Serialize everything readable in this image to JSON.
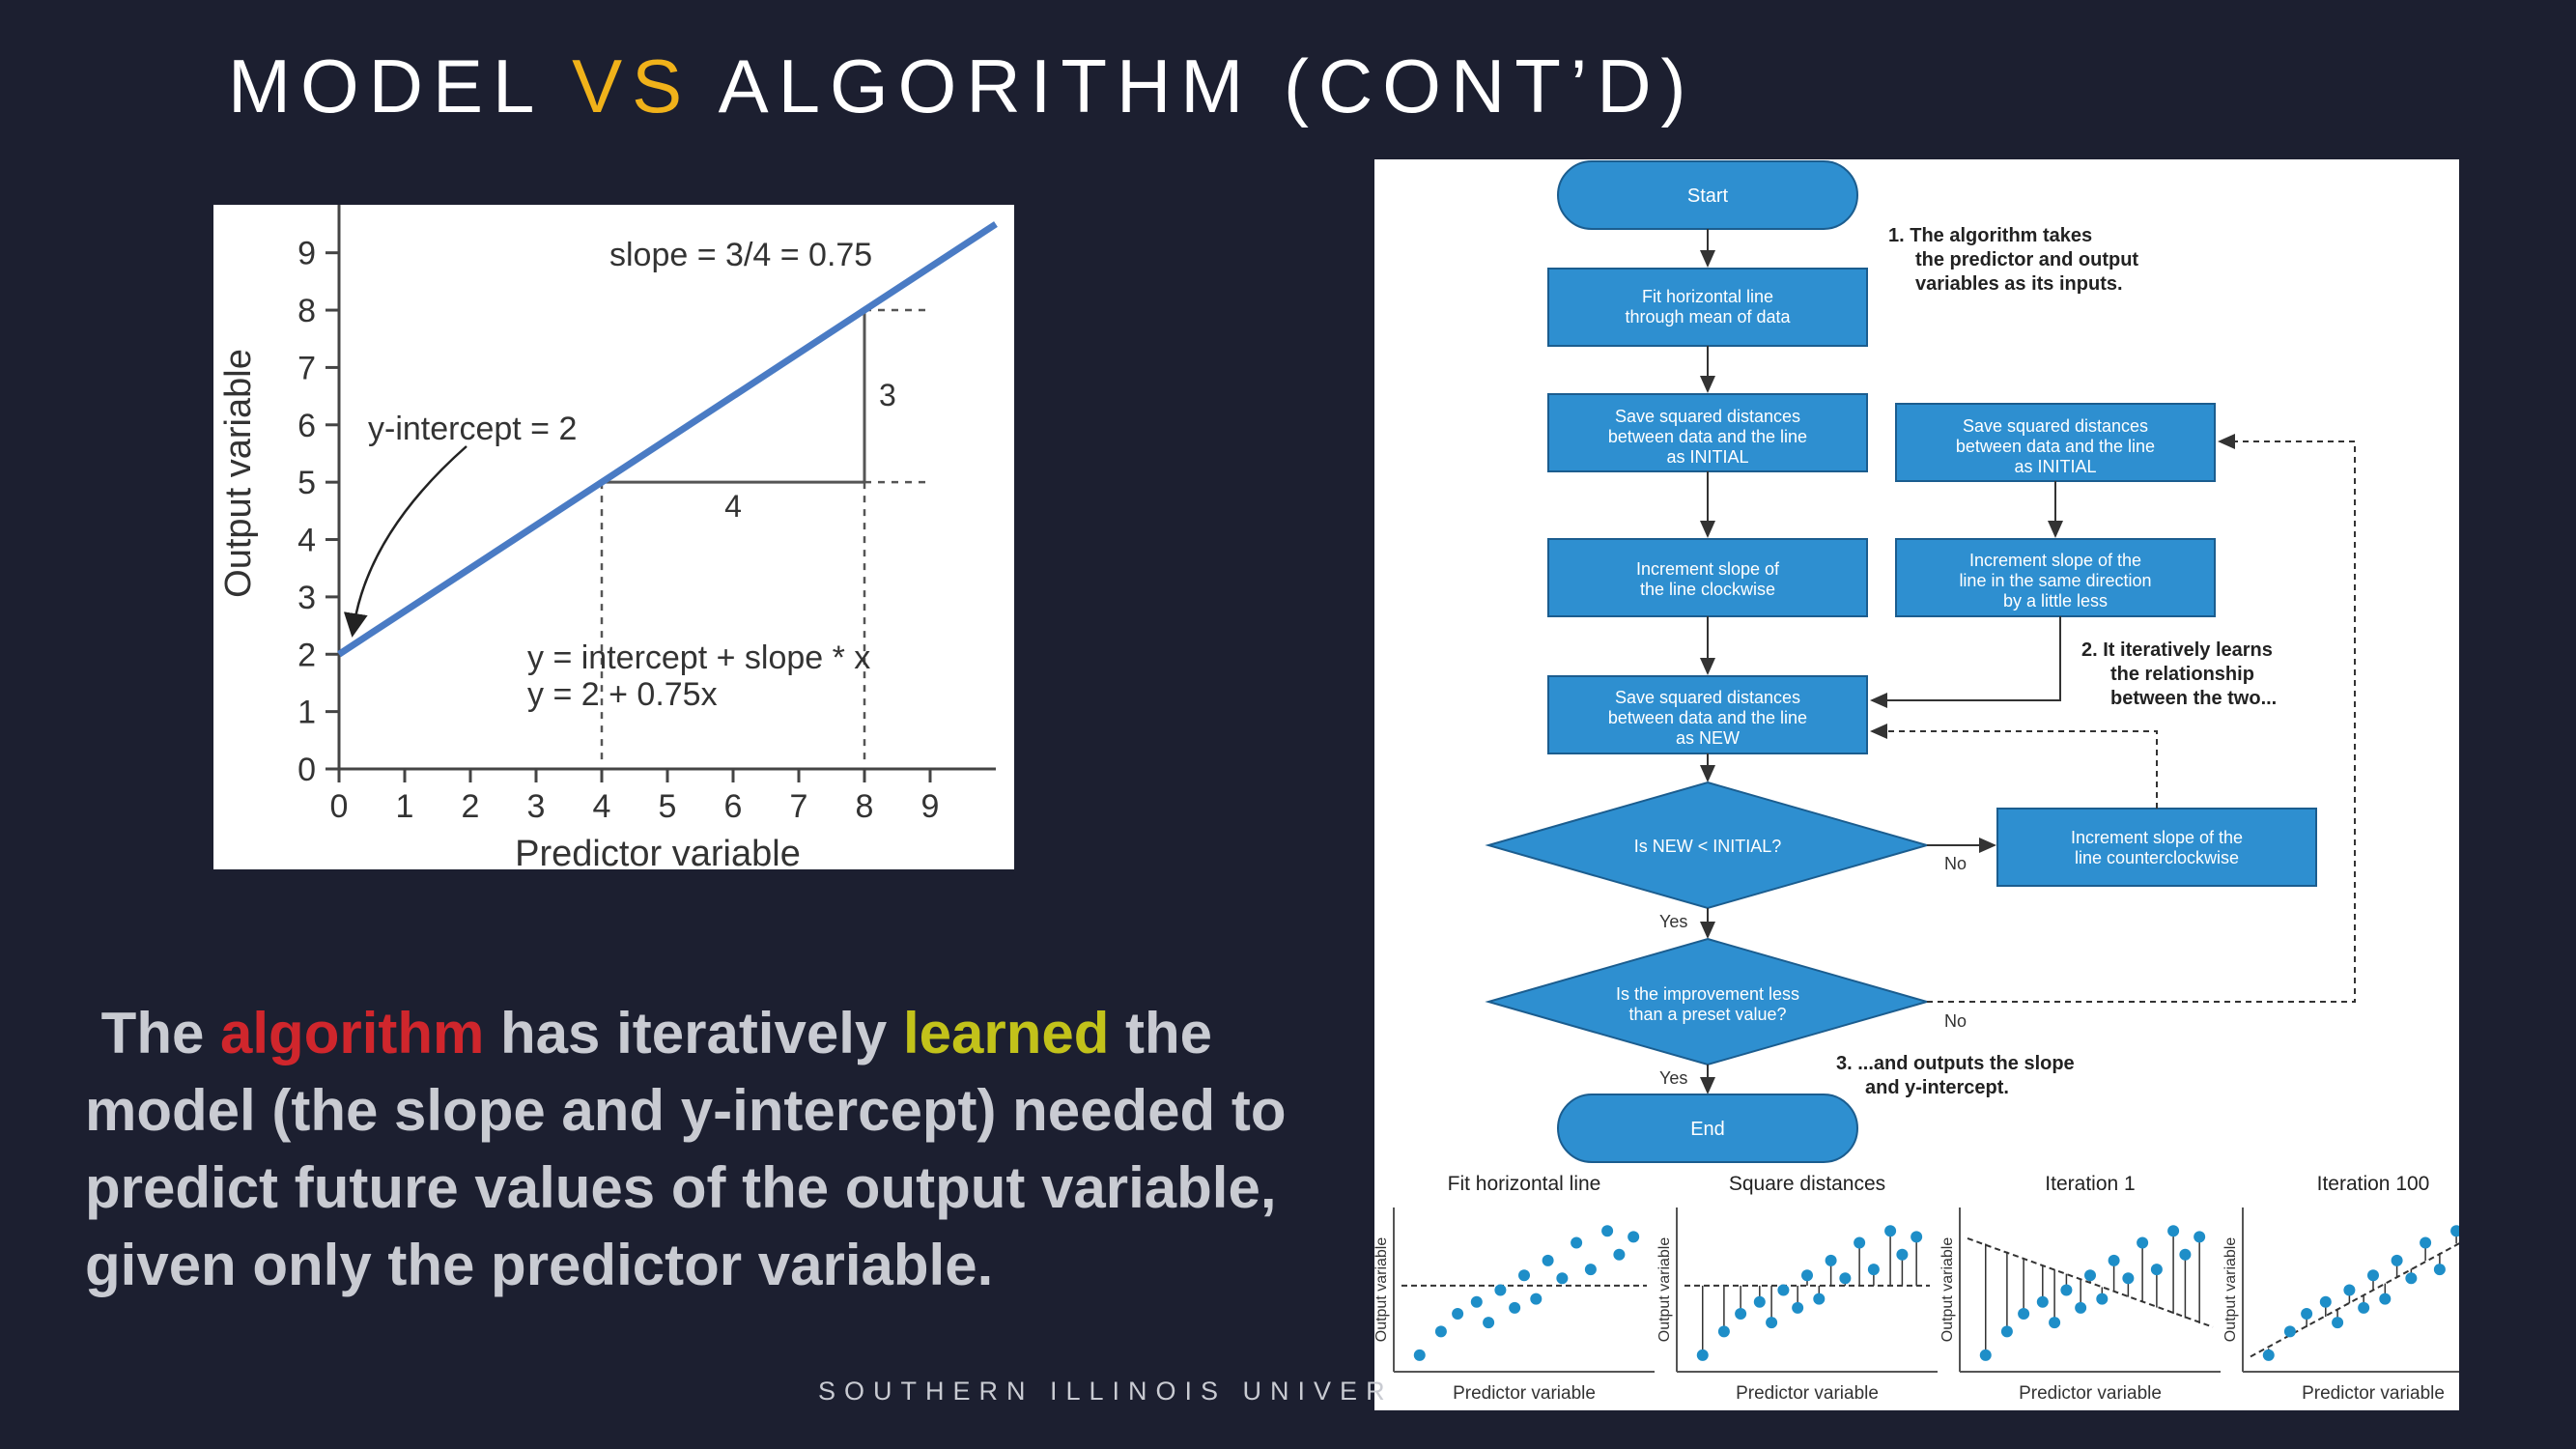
{
  "slide": {
    "title_part1": "MODEL ",
    "title_accent": "VS",
    "title_part2": " ALGORITHM (CONT’D)",
    "footer": "SOUTHERN ILLINOIS UNIVER",
    "accent_color": "#f0b21a",
    "background_color": "#1c1f30"
  },
  "body": {
    "p1": "The ",
    "algorithm": "algorithm",
    "p2": " has iteratively ",
    "learned": "learned",
    "p3": " the model (the slope and y-intercept) needed to predict future values of the output variable, given only the predictor variable.",
    "red_color": "#d0262c",
    "yellow_color": "#c2c21a"
  },
  "chart_data": {
    "type": "line",
    "xlabel": "Predictor variable",
    "ylabel": "Output variable",
    "x_ticks": [
      "0",
      "1",
      "2",
      "3",
      "4",
      "5",
      "6",
      "7",
      "8",
      "9"
    ],
    "y_ticks": [
      "0",
      "1",
      "2",
      "3",
      "4",
      "5",
      "6",
      "7",
      "8",
      "9"
    ],
    "xlim": [
      0,
      10
    ],
    "ylim": [
      0,
      9.5
    ],
    "line": {
      "intercept": 2,
      "slope": 0.75,
      "color": "#4a7bc4"
    },
    "annotations": {
      "slope_label": "slope = 3/4 = 0.75",
      "intercept_label": "y-intercept = 2",
      "eq1": "y = intercept + slope * x",
      "eq2": "y = 2 + 0.75x",
      "rise_label": "3",
      "run_label": "4"
    }
  },
  "flowchart": {
    "start": "Start",
    "end": "End",
    "fit_box": [
      "Fit horizontal line",
      "through mean of data"
    ],
    "save_initial_left": [
      "Save squared distances",
      "between data and the line",
      "as INITIAL"
    ],
    "save_initial_right": [
      "Save squared distances",
      "between data and the line",
      "as INITIAL"
    ],
    "increment_clockwise": [
      "Increment slope of",
      "the line clockwise"
    ],
    "increment_same": [
      "Increment slope of the",
      "line in the same direction",
      "by a little less"
    ],
    "save_new": [
      "Save squared distances",
      "between data and the line",
      "as NEW"
    ],
    "decision1": "Is NEW < INITIAL?",
    "decision2": [
      "Is the improvement less",
      "than a preset value?"
    ],
    "increment_counter": [
      "Increment slope of the",
      "line counterclockwise"
    ],
    "yes1": "Yes",
    "no1": "No",
    "yes2": "Yes",
    "no2": "No",
    "note1": [
      "1. The algorithm takes",
      "the predictor and output",
      "variables as its inputs."
    ],
    "note2": [
      "2. It iteratively learns",
      "the relationship",
      "between the two..."
    ],
    "note3": [
      "3. ...and outputs the slope",
      "and y-intercept."
    ],
    "box_color": "#2e8fd0"
  },
  "mini_plots": {
    "titles": [
      "Fit horizontal line",
      "Square distances",
      "Iteration 1",
      "Iteration 100"
    ],
    "xlabel": "Predictor variable",
    "ylabel": "Output variable",
    "dot_color": "#1e8ec8"
  }
}
